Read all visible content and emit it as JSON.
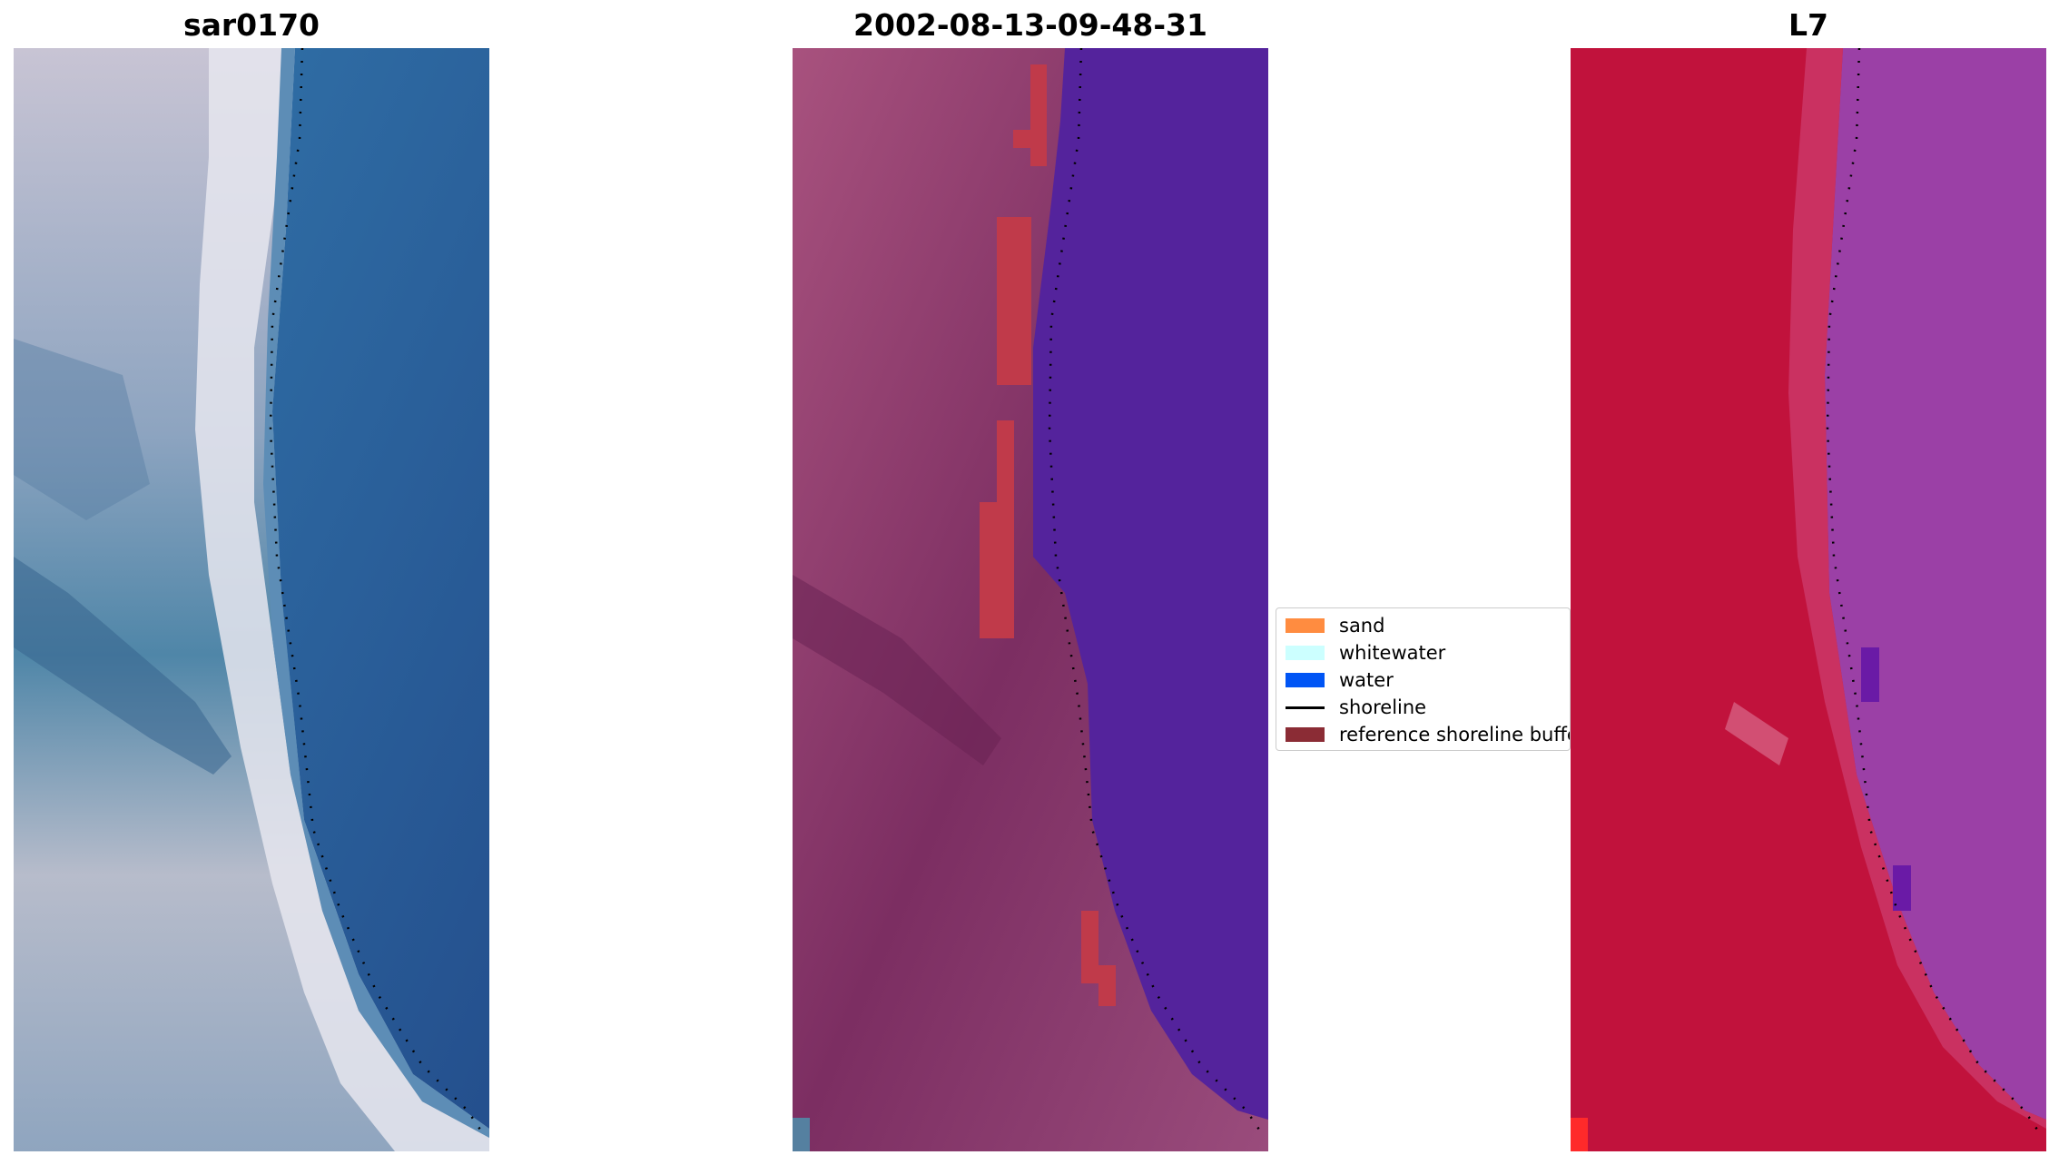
{
  "panels": [
    {
      "title": "sar0170",
      "image": "rgb satellite image of coastline with beach and water"
    },
    {
      "title": "2002-08-13-09-48-31",
      "image": "false-color image with classified water and reference shoreline buffer"
    },
    {
      "title": "L7",
      "image": "false-color index image of coastline"
    }
  ],
  "legend": {
    "items": [
      {
        "label": "sand",
        "type": "patch",
        "color": "#ff8c40"
      },
      {
        "label": "whitewater",
        "type": "patch",
        "color": "#ccffff"
      },
      {
        "label": "water",
        "type": "patch",
        "color": "#0055f5"
      },
      {
        "label": "shoreline",
        "type": "line",
        "color": "#000000"
      },
      {
        "label": "reference shoreline buffer",
        "type": "patch",
        "color": "#8b2c35"
      }
    ]
  },
  "colors": {
    "water_class": "#54239c",
    "buffer_class": "#c03a4a",
    "l7_land": "#c1123c",
    "l7_water": "#9b40a6"
  }
}
